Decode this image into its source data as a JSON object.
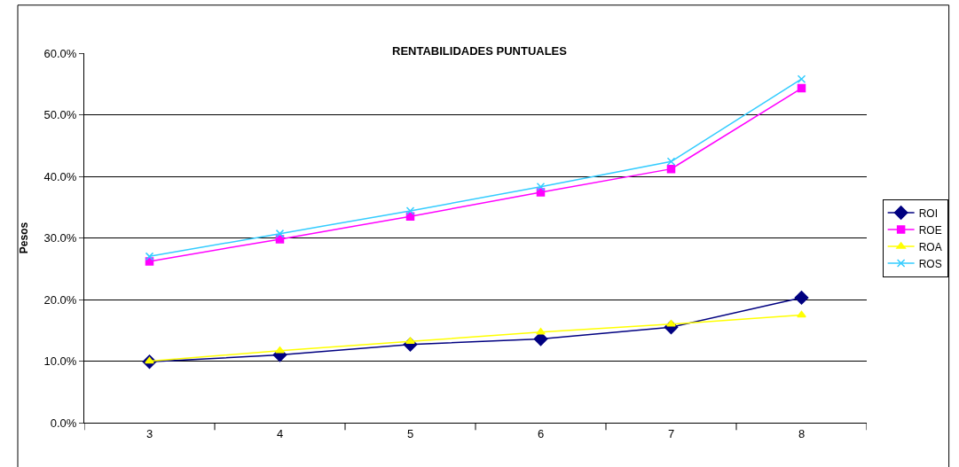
{
  "chart_data": {
    "type": "line",
    "title": "RENTABILIDADES PUNTUALES",
    "ylabel": "Pesos",
    "categories": [
      "3",
      "4",
      "5",
      "6",
      "7",
      "8"
    ],
    "series": [
      {
        "name": "ROI",
        "color": "#000080",
        "marker": "diamond",
        "values": [
          0.099,
          0.11,
          0.127,
          0.136,
          0.155,
          0.203
        ]
      },
      {
        "name": "ROE",
        "color": "#ff00ff",
        "marker": "square",
        "values": [
          0.262,
          0.298,
          0.335,
          0.374,
          0.412,
          0.543
        ]
      },
      {
        "name": "ROA",
        "color": "#ffff00",
        "marker": "triangle",
        "values": [
          0.1,
          0.117,
          0.132,
          0.147,
          0.16,
          0.175
        ]
      },
      {
        "name": "ROS",
        "color": "#33ccff",
        "marker": "cross",
        "values": [
          0.27,
          0.307,
          0.344,
          0.383,
          0.424,
          0.558
        ]
      }
    ],
    "ylim": [
      0,
      0.6
    ],
    "yticks": [
      {
        "value": 0,
        "label": "0.0%"
      },
      {
        "value": 0.1,
        "label": "10.0%"
      },
      {
        "value": 0.2,
        "label": "20.0%"
      },
      {
        "value": 0.3,
        "label": "30.0%"
      },
      {
        "value": 0.4,
        "label": "40.0%"
      },
      {
        "value": 0.5,
        "label": "50.0%"
      },
      {
        "value": 0.6,
        "label": "60.0%"
      }
    ],
    "grid": "y",
    "legend": "right",
    "line_style": "solid"
  }
}
